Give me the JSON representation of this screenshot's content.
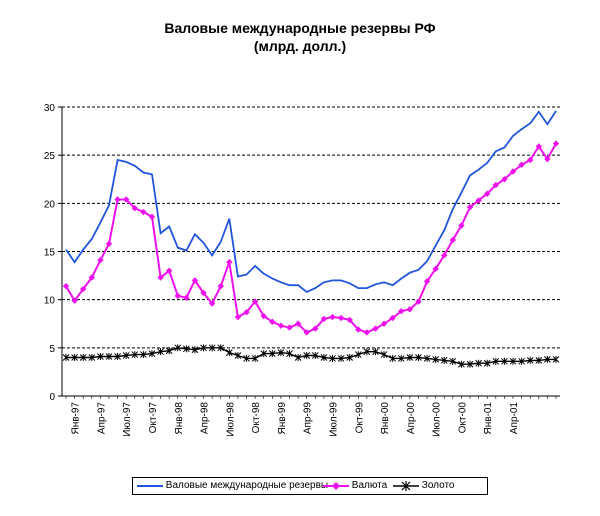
{
  "chart_data": {
    "type": "line",
    "title": "Валовые международные резервы РФ",
    "subtitle": "(млрд. долл.)",
    "xlabel": "",
    "ylabel": "",
    "ylim": [
      0,
      30
    ],
    "yticks": [
      "0",
      "5",
      "10",
      "15",
      "20",
      "25",
      "30"
    ],
    "grid": "horizontal-dashed",
    "legend_position": "bottom",
    "x_tick_labels": [
      "Янв-97",
      "Апр-97",
      "Июл-97",
      "Окт-97",
      "Янв-98",
      "Апр-98",
      "Июл-98",
      "Окт-98",
      "Янв-99",
      "Апр-99",
      "Июл-99",
      "Окт-99",
      "Янв-00",
      "Апр-00",
      "Июл-00",
      "Окт-00",
      "Янв-01",
      "Апр-01"
    ],
    "series": [
      {
        "name": "Валовые международные резервы",
        "color": "#2255dd",
        "marker": "none",
        "values": [
          15.2,
          13.9,
          15.2,
          16.3,
          18.0,
          19.8,
          24.5,
          24.3,
          23.9,
          23.2,
          23.0,
          16.9,
          17.6,
          15.4,
          15.1,
          16.8,
          15.9,
          14.6,
          16.0,
          18.4,
          12.4,
          12.6,
          13.5,
          12.7,
          12.2,
          11.8,
          11.5,
          11.5,
          10.8,
          11.2,
          11.8,
          12.0,
          12.0,
          11.7,
          11.2,
          11.2,
          11.6,
          11.8,
          11.5,
          12.2,
          12.8,
          13.1,
          14.0,
          15.6,
          17.2,
          19.4,
          21.1,
          22.9,
          23.5,
          24.2,
          25.4,
          25.8,
          27.0,
          27.7,
          28.3,
          29.5,
          28.2,
          29.6
        ]
      },
      {
        "name": "Валюта",
        "color": "#ee11ee",
        "marker": "diamond",
        "values": [
          11.4,
          9.9,
          11.1,
          12.3,
          14.1,
          15.8,
          20.4,
          20.4,
          19.5,
          19.1,
          18.6,
          12.3,
          13.0,
          10.4,
          10.2,
          12.0,
          10.7,
          9.6,
          11.4,
          13.9,
          8.2,
          8.7,
          9.8,
          8.3,
          7.7,
          7.3,
          7.1,
          7.5,
          6.6,
          7.0,
          8.0,
          8.2,
          8.1,
          7.9,
          6.9,
          6.6,
          7.0,
          7.5,
          8.1,
          8.8,
          9.0,
          9.8,
          11.9,
          13.2,
          14.6,
          16.2,
          17.7,
          19.6,
          20.3,
          21.0,
          21.9,
          22.5,
          23.3,
          24.0,
          24.5,
          25.9,
          24.6,
          26.2
        ]
      },
      {
        "name": "Золото",
        "color": "#000000",
        "marker": "star",
        "values": [
          4.0,
          4.0,
          4.0,
          4.0,
          4.1,
          4.1,
          4.1,
          4.2,
          4.3,
          4.3,
          4.4,
          4.6,
          4.7,
          5.0,
          4.9,
          4.8,
          5.0,
          5.0,
          5.0,
          4.5,
          4.2,
          3.9,
          3.9,
          4.4,
          4.4,
          4.5,
          4.4,
          4.0,
          4.2,
          4.2,
          4.0,
          3.9,
          3.9,
          4.0,
          4.3,
          4.6,
          4.6,
          4.3,
          3.9,
          3.9,
          4.0,
          4.0,
          3.9,
          3.8,
          3.7,
          3.6,
          3.3,
          3.3,
          3.4,
          3.4,
          3.6,
          3.6,
          3.6,
          3.6,
          3.7,
          3.7,
          3.8,
          3.8
        ]
      }
    ]
  }
}
